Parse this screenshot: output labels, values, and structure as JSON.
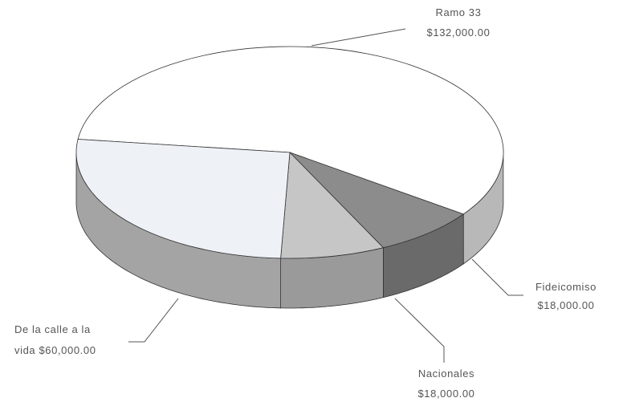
{
  "chart_data": {
    "type": "pie",
    "style": "3d",
    "title": "",
    "slices": [
      {
        "label": "Ramo 33",
        "value_text": "$132,000.00",
        "value": 132000,
        "color": "#ffffff",
        "side": "#b8b8b8"
      },
      {
        "label": "Fideicomiso",
        "value_text": "$18,000.00",
        "value": 18000,
        "color": "#8c8c8c",
        "side": "#6a6a6a"
      },
      {
        "label": "Nacionales",
        "value_text": "$18,000.00",
        "value": 18000,
        "color": "#c6c6c6",
        "side": "#9a9a9a"
      },
      {
        "label_lines": [
          "De la calle a la",
          "vida $60,000.00"
        ],
        "label": "De la calle a la vida",
        "value_text": "$60,000.00",
        "value": 60000,
        "color": "#eef2f7",
        "side": "#a4a4a4"
      }
    ],
    "outline_color": "#333333",
    "legend": "none"
  }
}
